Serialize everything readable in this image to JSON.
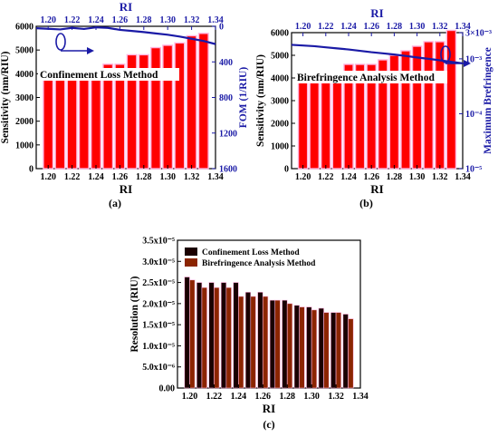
{
  "colors": {
    "bar_red": "#ff0000",
    "bar_black": "#1a0000",
    "bar_brown": "#8b2500",
    "line_blue": "#1a1aa6",
    "axis_blue": "#1a1aa6",
    "highlight_pink": "#ffb3de"
  },
  "chart_data": [
    {
      "id": "a",
      "type": "bar",
      "panel_label": "(a)",
      "annotation": "Confinement Loss Method",
      "xlabel": "RI",
      "ylabel": "Sensitivity (nm/RIU)",
      "x2label": "RI",
      "y2label": "FOM (1/RIU)",
      "xlim": [
        1.19,
        1.34
      ],
      "ylim": [
        0,
        6000
      ],
      "y2lim": [
        0,
        1600
      ],
      "y2_inverted": true,
      "xticks": [
        1.2,
        1.22,
        1.24,
        1.26,
        1.28,
        1.3,
        1.32,
        1.34
      ],
      "xtick_labels": [
        "1.20",
        "1.22",
        "1.24",
        "1.26",
        "1.28",
        "1.30",
        "1.32",
        "1.34"
      ],
      "yticks": [
        0,
        1000,
        2000,
        3000,
        4000,
        5000,
        6000
      ],
      "ytick_labels": [
        "0",
        "1000",
        "2000",
        "3000",
        "4000",
        "5000",
        "6000"
      ],
      "y2ticks": [
        0,
        400,
        800,
        1200,
        1600
      ],
      "y2tick_labels": [
        "0",
        "400",
        "800",
        "1200",
        "1600"
      ],
      "x": [
        1.2,
        1.21,
        1.22,
        1.23,
        1.24,
        1.25,
        1.26,
        1.27,
        1.28,
        1.29,
        1.3,
        1.31,
        1.32,
        1.33
      ],
      "series": [
        {
          "kind": "bar",
          "axis": "left",
          "values": [
            3800,
            4000,
            4000,
            4000,
            4000,
            4400,
            4400,
            4800,
            4800,
            5100,
            5200,
            5300,
            5600,
            5700
          ]
        },
        {
          "kind": "line",
          "axis": "right",
          "x": [
            1.19,
            1.2,
            1.21,
            1.22,
            1.23,
            1.24,
            1.25,
            1.26,
            1.27,
            1.28,
            1.29,
            1.3,
            1.31,
            1.32,
            1.33,
            1.34
          ],
          "values": [
            22,
            28,
            35,
            18,
            30,
            12,
            18,
            40,
            52,
            65,
            80,
            95,
            115,
            140,
            165,
            200
          ]
        }
      ]
    },
    {
      "id": "b",
      "type": "bar",
      "panel_label": "(b)",
      "annotation": "Birefringence Analysis Method",
      "xlabel": "RI",
      "ylabel": "Sensitivity (nm/RIU)",
      "x2label": "RI",
      "y2label": "Maximum Brefringence",
      "xlim": [
        1.19,
        1.34
      ],
      "ylim": [
        0,
        6000
      ],
      "y2_scale": "log",
      "y2lim": [
        1e-05,
        0.003
      ],
      "yticks": [
        0,
        1000,
        2000,
        3000,
        4000,
        5000,
        6000
      ],
      "ytick_labels": [
        "0",
        "1000",
        "2000",
        "3000",
        "4000",
        "5000",
        "6000"
      ],
      "y2ticks": [
        1e-05,
        0.0001,
        0.001,
        0.003
      ],
      "y2tick_labels": [
        "10⁻⁵",
        "10⁻⁴",
        "10⁻³",
        "3×10⁻³"
      ],
      "xticks": [
        1.2,
        1.22,
        1.24,
        1.26,
        1.28,
        1.3,
        1.32,
        1.34
      ],
      "xtick_labels": [
        "1.20",
        "1.22",
        "1.24",
        "1.26",
        "1.28",
        "1.30",
        "1.32",
        "1.34"
      ],
      "x": [
        1.2,
        1.21,
        1.22,
        1.23,
        1.24,
        1.25,
        1.26,
        1.27,
        1.28,
        1.29,
        1.3,
        1.31,
        1.32,
        1.33
      ],
      "series": [
        {
          "kind": "bar",
          "axis": "left",
          "values": [
            3900,
            4200,
            4200,
            4200,
            4600,
            4600,
            4600,
            4800,
            5000,
            5200,
            5400,
            5600,
            5600,
            6100
          ]
        },
        {
          "kind": "line",
          "axis": "right",
          "x": [
            1.19,
            1.2,
            1.21,
            1.22,
            1.23,
            1.24,
            1.25,
            1.26,
            1.27,
            1.28,
            1.29,
            1.3,
            1.31,
            1.32,
            1.33,
            1.34
          ],
          "values": [
            0.0018,
            0.00175,
            0.0017,
            0.00162,
            0.00155,
            0.00148,
            0.0014,
            0.00132,
            0.00126,
            0.0012,
            0.00113,
            0.00106,
            0.001,
            0.00094,
            0.00088,
            0.00083
          ]
        }
      ]
    },
    {
      "id": "c",
      "type": "bar",
      "panel_label": "(c)",
      "xlabel": "RI",
      "ylabel": "Resolution (RIU)",
      "xlim": [
        1.19,
        1.34
      ],
      "ylim": [
        0,
        3.5e-05
      ],
      "xticks": [
        1.2,
        1.22,
        1.24,
        1.26,
        1.28,
        1.3,
        1.32,
        1.34
      ],
      "xtick_labels": [
        "1.20",
        "1.22",
        "1.24",
        "1.26",
        "1.28",
        "1.30",
        "1.32",
        "1.34"
      ],
      "yticks": [
        0,
        5e-06,
        1e-05,
        1.5e-05,
        2e-05,
        2.5e-05,
        3e-05,
        3.5e-05
      ],
      "ytick_labels": [
        "0.00",
        "5.0x10⁻⁶",
        "1.0x10⁻⁵",
        "1.5x10⁻⁵",
        "2.0x10⁻⁵",
        "2.5x10⁻⁵",
        "3.0x10⁻⁵",
        "3.5x10⁻⁵"
      ],
      "x": [
        1.2,
        1.21,
        1.22,
        1.23,
        1.24,
        1.25,
        1.26,
        1.27,
        1.28,
        1.29,
        1.3,
        1.31,
        1.32,
        1.33
      ],
      "legend": [
        "Confinement Loss Method",
        "Birefringence Analysis Method"
      ],
      "series": [
        {
          "name": "Confinement Loss Method",
          "values": [
            2.63e-05,
            2.5e-05,
            2.5e-05,
            2.5e-05,
            2.5e-05,
            2.27e-05,
            2.27e-05,
            2.08e-05,
            2.08e-05,
            1.96e-05,
            1.92e-05,
            1.89e-05,
            1.79e-05,
            1.75e-05
          ]
        },
        {
          "name": "Birefringence Analysis Method",
          "values": [
            2.56e-05,
            2.38e-05,
            2.38e-05,
            2.38e-05,
            2.17e-05,
            2.17e-05,
            2.17e-05,
            2.08e-05,
            2e-05,
            1.92e-05,
            1.85e-05,
            1.79e-05,
            1.79e-05,
            1.64e-05
          ]
        }
      ]
    }
  ]
}
